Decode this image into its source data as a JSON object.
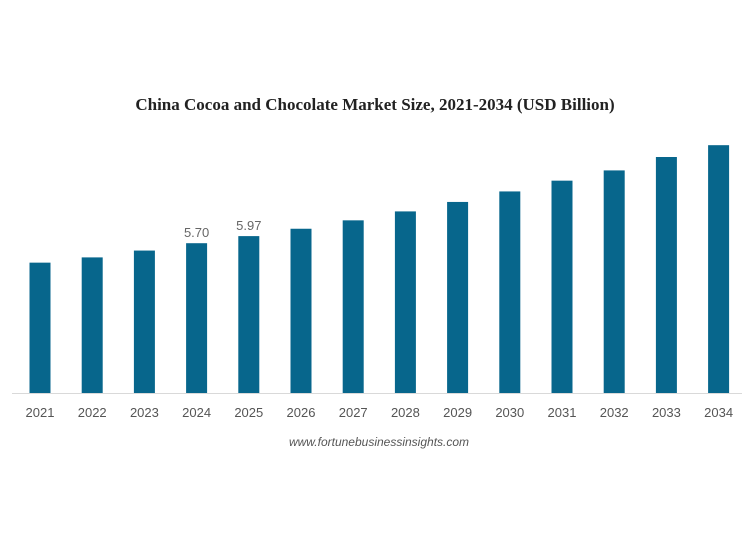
{
  "chart_data": {
    "type": "bar",
    "title": "China Cocoa and Chocolate Market Size, 2021-2034 (USD Billion)",
    "xlabel": "",
    "ylabel": "",
    "categories": [
      "2021",
      "2022",
      "2023",
      "2024",
      "2025",
      "2026",
      "2027",
      "2028",
      "2029",
      "2030",
      "2031",
      "2032",
      "2033",
      "2034"
    ],
    "values": [
      4.96,
      5.16,
      5.42,
      5.7,
      5.97,
      6.25,
      6.57,
      6.91,
      7.27,
      7.67,
      8.08,
      8.47,
      8.98,
      9.43
    ],
    "data_labels": {
      "2024": "5.70",
      "2025": "5.97"
    },
    "ylim": [
      0,
      10
    ],
    "grid": false,
    "bar_color": "#07668c",
    "source": "www.fortunebusinessinsights.com"
  }
}
